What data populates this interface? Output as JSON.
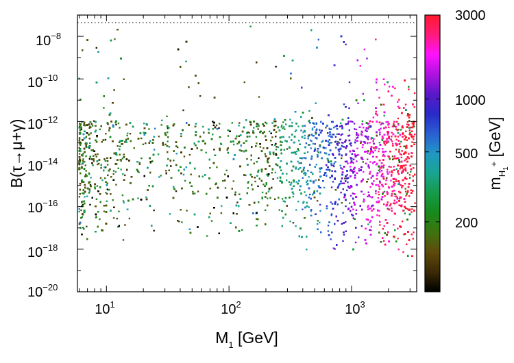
{
  "chart_data": {
    "type": "scatter",
    "xlabel": {
      "base": "M",
      "subscript": "1",
      "unit": " [GeV]"
    },
    "ylabel": "B(τ→μ+γ)",
    "xscale": "log",
    "yscale": "log",
    "xlim": [
      5.8,
      3400
    ],
    "ylim": [
      1e-20,
      1e-07
    ],
    "x_ticks": [
      {
        "value": 10,
        "base": "10",
        "exp": "1"
      },
      {
        "value": 100,
        "base": "10",
        "exp": "2"
      },
      {
        "value": 1000,
        "base": "10",
        "exp": "3"
      }
    ],
    "y_ticks": [
      {
        "value": 1e-20,
        "base": "10",
        "exp": "−20"
      },
      {
        "value": 1e-18,
        "base": "10",
        "exp": "−18"
      },
      {
        "value": 1e-16,
        "base": "10",
        "exp": "−16"
      },
      {
        "value": 1e-14,
        "base": "10",
        "exp": "−14"
      },
      {
        "value": 1e-12,
        "base": "10",
        "exp": "−12"
      },
      {
        "value": 1e-10,
        "base": "10",
        "exp": "−10"
      },
      {
        "value": 1e-08,
        "base": "10",
        "exp": "−8"
      }
    ],
    "experimental_bound": {
      "value": 4.4e-08,
      "style": "dotted"
    },
    "colorbar": {
      "label": {
        "base": "m",
        "sub": "H",
        "subsub": "1",
        "sup": "+",
        "unit": " [GeV]"
      },
      "scale": "log",
      "range": [
        80,
        3000
      ],
      "ticks": [
        {
          "value": 200,
          "label": "200"
        },
        {
          "value": 500,
          "label": "500"
        },
        {
          "value": 1000,
          "label": "1000"
        },
        {
          "value": 3000,
          "label": "3000"
        }
      ],
      "colors": [
        "#000000",
        "#3a2a05",
        "#5e4a0b",
        "#3f7310",
        "#168a1c",
        "#169a4a",
        "#18a590",
        "#2097c5",
        "#2a5fd2",
        "#2a2ac8",
        "#5a18c8",
        "#b012e0",
        "#ff12ff",
        "#ff1a7a",
        "#ff1a2e"
      ]
    },
    "points": {
      "count": 9000,
      "description": "Randomized scan: dense band for B between 1e-18 and 1e-12 across M1 from 6 to 3300 GeV; sparse points between 1e-12 and 3e-8; color tracks charged-Higgs mass, growing with M1",
      "dense_band": [
        1e-18,
        1e-12
      ],
      "sparse_max": 3e-08
    }
  }
}
